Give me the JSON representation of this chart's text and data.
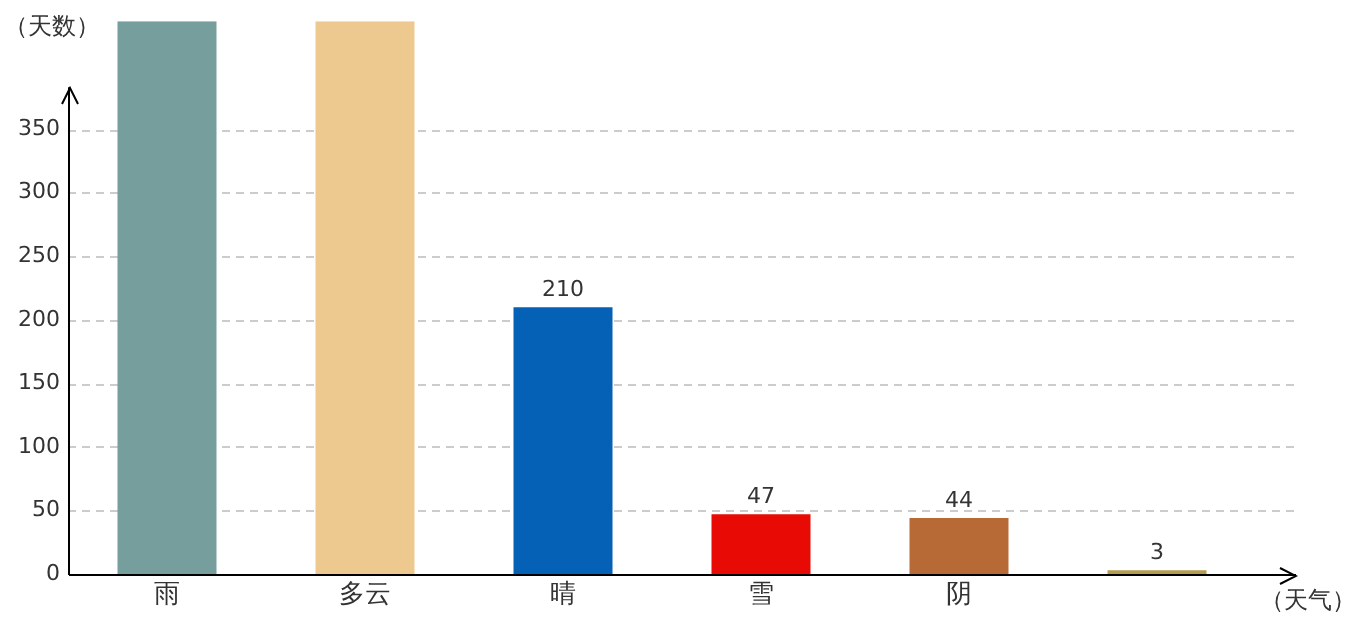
{
  "chart_data": {
    "type": "bar",
    "xlabel": "（天气）",
    "ylabel": "（天数）",
    "categories": [
      "雨",
      "多云",
      "晴",
      "雪",
      "阴",
      null
    ],
    "values": [
      435,
      435,
      210,
      47,
      44,
      3
    ],
    "colors": [
      "#769e9c",
      "#eec98f",
      "#0561b5",
      "#e80b05",
      "#b76a35",
      "#b39d4e"
    ],
    "value_labels": [
      null,
      null,
      "210",
      "47",
      "44",
      "3"
    ],
    "ylim": [
      0,
      435
    ],
    "yticks": [
      0,
      50,
      100,
      150,
      200,
      250,
      300,
      350
    ],
    "grid": "y"
  }
}
